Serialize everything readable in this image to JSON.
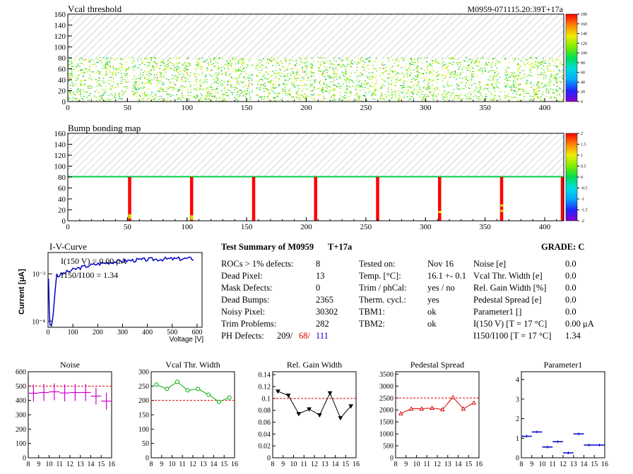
{
  "module_id": "M0959-071115.20:39T+17a",
  "vcal_map": {
    "title": "Vcal threshold",
    "x_ticks": [
      "0",
      "50",
      "100",
      "150",
      "200",
      "250",
      "300",
      "350",
      "400"
    ],
    "y_ticks": [
      "0",
      "20",
      "40",
      "60",
      "80",
      "100",
      "120",
      "140",
      "160"
    ],
    "z_ticks": [
      "0",
      "20",
      "40",
      "60",
      "80",
      "100",
      "120",
      "140",
      "160",
      "180"
    ]
  },
  "bump_map": {
    "title": "Bump bonding map",
    "x_ticks": [
      "0",
      "50",
      "100",
      "150",
      "200",
      "250",
      "300",
      "350",
      "400"
    ],
    "y_ticks": [
      "0",
      "20",
      "40",
      "60",
      "80",
      "100",
      "120",
      "140",
      "160"
    ],
    "z_ticks": [
      "-2",
      "-1.5",
      "-1",
      "-0.5",
      "0",
      "0.5",
      "1",
      "1.5",
      "2"
    ]
  },
  "iv": {
    "title": "I-V-Curve",
    "ylabel": "Current [μA]",
    "xlabel": "Voltage [V]",
    "x_ticks": [
      "0",
      "100",
      "200",
      "300",
      "400",
      "500",
      "600"
    ],
    "y_ticks": [
      "10⁻⁴",
      "10⁻³"
    ],
    "annot1": "I(150 V) = 0.00 μA",
    "annot2": "I150/I100 = 1.34"
  },
  "summary": {
    "title": "Test Summary of M0959",
    "tag": "T+17a",
    "grade": "GRADE:  C",
    "col1": [
      {
        "label": "ROCs > 1% defects:",
        "value": "8"
      },
      {
        "label": "Dead Pixel:",
        "value": "13"
      },
      {
        "label": "Mask Defects:",
        "value": "0"
      },
      {
        "label": "Dead Bumps:",
        "value": "2365"
      },
      {
        "label": "Noisy Pixel:",
        "value": "30302"
      },
      {
        "label": "Trim Problems:",
        "value": "282"
      }
    ],
    "ph_label": "PH Defects:",
    "ph1": "209/",
    "ph2": "68/",
    "ph3": "111",
    "col2": [
      {
        "label": "Tested on:",
        "value": "Nov 16"
      },
      {
        "label": "Temp. [°C]:",
        "value": "16.1 +- 0.1"
      },
      {
        "label": "Trim / phCal:",
        "value": "yes / no"
      },
      {
        "label": "Therm. cycl.:",
        "value": "yes"
      },
      {
        "label": "TBM1:",
        "value": "ok"
      },
      {
        "label": "TBM2:",
        "value": "ok"
      }
    ],
    "col3": [
      {
        "label": "Noise [e]",
        "value": "0.0"
      },
      {
        "label": "Vcal Thr. Width [e]",
        "value": "0.0"
      },
      {
        "label": "Rel. Gain Width [%]",
        "value": "0.0"
      },
      {
        "label": "Pedestal Spread [e]",
        "value": "0.0"
      },
      {
        "label": "Parameter1 []",
        "value": "0.0"
      },
      {
        "label": "I(150 V) [T = 17 °C]",
        "value": "0.00 μA"
      },
      {
        "label": "I150/I100 [T = 17 °C]",
        "value": "1.34"
      }
    ]
  },
  "chart_data": [
    {
      "type": "line",
      "title": "Noise",
      "color": "#cc00cc",
      "x_ticks": [
        "8",
        "9",
        "10",
        "11",
        "12",
        "13",
        "14",
        "15",
        "16"
      ],
      "y_ticks": [
        "0",
        "100",
        "200",
        "300",
        "400",
        "500",
        "600"
      ],
      "ylim": [
        0,
        600
      ],
      "ref": 500,
      "x": [
        8.5,
        9.5,
        10.5,
        11.5,
        12.5,
        13.5,
        14.5,
        15.5
      ],
      "values": [
        450,
        455,
        460,
        452,
        455,
        455,
        430,
        395
      ],
      "style": "errbar"
    },
    {
      "type": "line",
      "title": "Vcal Thr. Width",
      "color": "#00aa00",
      "x_ticks": [
        "8",
        "9",
        "10",
        "11",
        "12",
        "13",
        "14",
        "15",
        "16"
      ],
      "y_ticks": [
        "0",
        "50",
        "100",
        "150",
        "200",
        "250",
        "300"
      ],
      "ylim": [
        0,
        300
      ],
      "ref": 200,
      "x": [
        8.5,
        9.5,
        10.5,
        11.5,
        12.5,
        13.5,
        14.5,
        15.5
      ],
      "values": [
        255,
        240,
        265,
        235,
        240,
        220,
        195,
        210
      ],
      "style": "circle"
    },
    {
      "type": "line",
      "title": "Rel. Gain Width",
      "color": "#000000",
      "x_ticks": [
        "8",
        "9",
        "10",
        "11",
        "12",
        "13",
        "14",
        "15",
        "16"
      ],
      "y_ticks": [
        "0",
        "0.02",
        "0.04",
        "0.06",
        "0.08",
        "0.1",
        "0.12",
        "0.14"
      ],
      "ylim": [
        0,
        0.145
      ],
      "ref": 0.1,
      "x": [
        8.5,
        9.5,
        10.5,
        11.5,
        12.5,
        13.5,
        14.5,
        15.5
      ],
      "values": [
        0.112,
        0.105,
        0.074,
        0.082,
        0.072,
        0.109,
        0.067,
        0.087
      ],
      "style": "triangle"
    },
    {
      "type": "line",
      "title": "Pedestal Spread",
      "color": "#dd0000",
      "x_ticks": [
        "8",
        "9",
        "10",
        "11",
        "12",
        "13",
        "14",
        "15",
        "16"
      ],
      "y_ticks": [
        "0",
        "500",
        "1000",
        "1500",
        "2000",
        "2500",
        "3000",
        "3500"
      ],
      "ylim": [
        0,
        3600
      ],
      "ref": 2500,
      "x": [
        8.5,
        9.5,
        10.5,
        11.5,
        12.5,
        13.5,
        14.5,
        15.5
      ],
      "values": [
        1850,
        2050,
        2050,
        2080,
        2020,
        2530,
        2050,
        2300
      ],
      "style": "triangle"
    },
    {
      "type": "scatter",
      "title": "Parameter1",
      "color": "#0000cc",
      "x_ticks": [
        "8",
        "9",
        "10",
        "11",
        "12",
        "13",
        "14",
        "15",
        "16"
      ],
      "y_ticks": [
        "0",
        "1",
        "2",
        "3",
        "4"
      ],
      "ylim": [
        0,
        4.4
      ],
      "ref": null,
      "x": [
        8.5,
        9.5,
        10.5,
        11.5,
        12.5,
        13.5,
        14.5,
        15.5
      ],
      "values": [
        1.1,
        1.32,
        0.55,
        0.82,
        0.25,
        1.22,
        0.65,
        0.65
      ],
      "style": "hbar"
    }
  ]
}
